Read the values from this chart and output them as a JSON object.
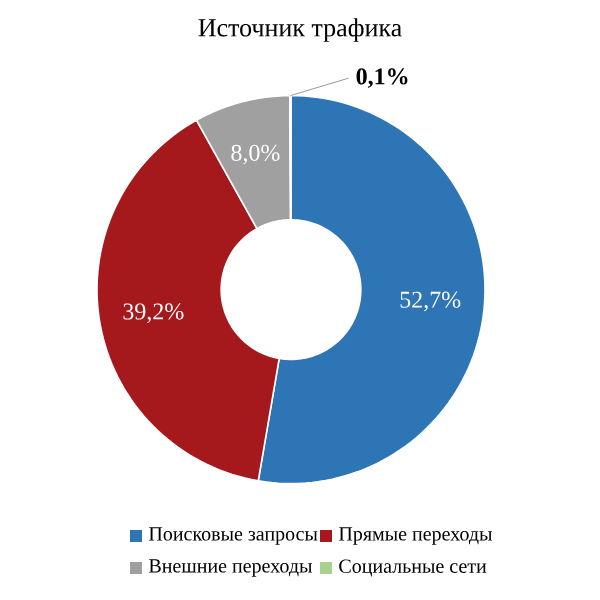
{
  "chart_data": {
    "type": "donut",
    "title": "Источник трафика",
    "categories": [
      "Поисковые запросы",
      "Прямые переходы",
      "Внешние переходы",
      "Социальные сети"
    ],
    "values": [
      52.7,
      39.2,
      8.0,
      0.1
    ],
    "colors": [
      "#2e75b6",
      "#a5191d",
      "#a0a0a0",
      "#a9d18e"
    ],
    "value_labels": [
      "52,7%",
      "39,2%",
      "8,0%",
      "0,1%"
    ],
    "legend": "bottom"
  }
}
